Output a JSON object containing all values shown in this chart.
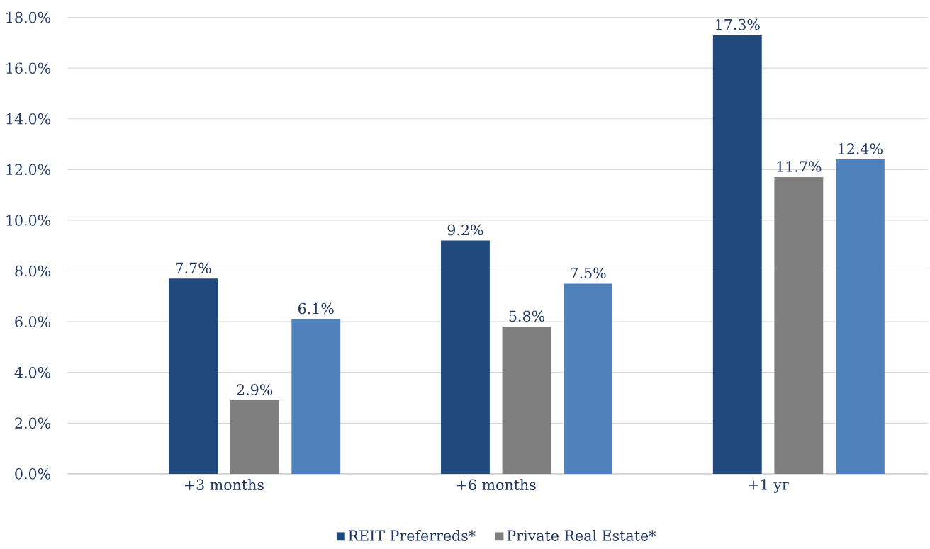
{
  "chart_data": {
    "type": "bar",
    "categories": [
      "+3 months",
      "+6 months",
      "+1 yr"
    ],
    "series": [
      {
        "name": "REIT Preferreds*",
        "color": "#1f497d",
        "values": [
          7.7,
          9.2,
          17.3
        ],
        "value_labels": [
          "7.7%",
          "9.2%",
          "17.3%"
        ]
      },
      {
        "name": "Private Real Estate*",
        "color": "#7f7f7f",
        "values": [
          2.9,
          5.8,
          11.7
        ],
        "value_labels": [
          "2.9%",
          "5.8%",
          "11.7%"
        ]
      },
      {
        "color": "#4f81bd",
        "values": [
          6.1,
          7.5,
          12.4
        ],
        "value_labels": [
          "6.1%",
          "7.5%",
          "12.4%"
        ]
      }
    ],
    "ylim": [
      0,
      18
    ],
    "yticks": [
      {
        "value": 0,
        "label": "0.0%"
      },
      {
        "value": 2,
        "label": "2.0%"
      },
      {
        "value": 4,
        "label": "4.0%"
      },
      {
        "value": 6,
        "label": "6.0%"
      },
      {
        "value": 8,
        "label": "8.0%"
      },
      {
        "value": 10,
        "label": "10.0%"
      },
      {
        "value": 12,
        "label": "12.0%"
      },
      {
        "value": 14,
        "label": "14.0%"
      },
      {
        "value": 16,
        "label": "16.0%"
      },
      {
        "value": 18,
        "label": "18.0%"
      }
    ],
    "grid": "y",
    "legend": "bottom"
  }
}
